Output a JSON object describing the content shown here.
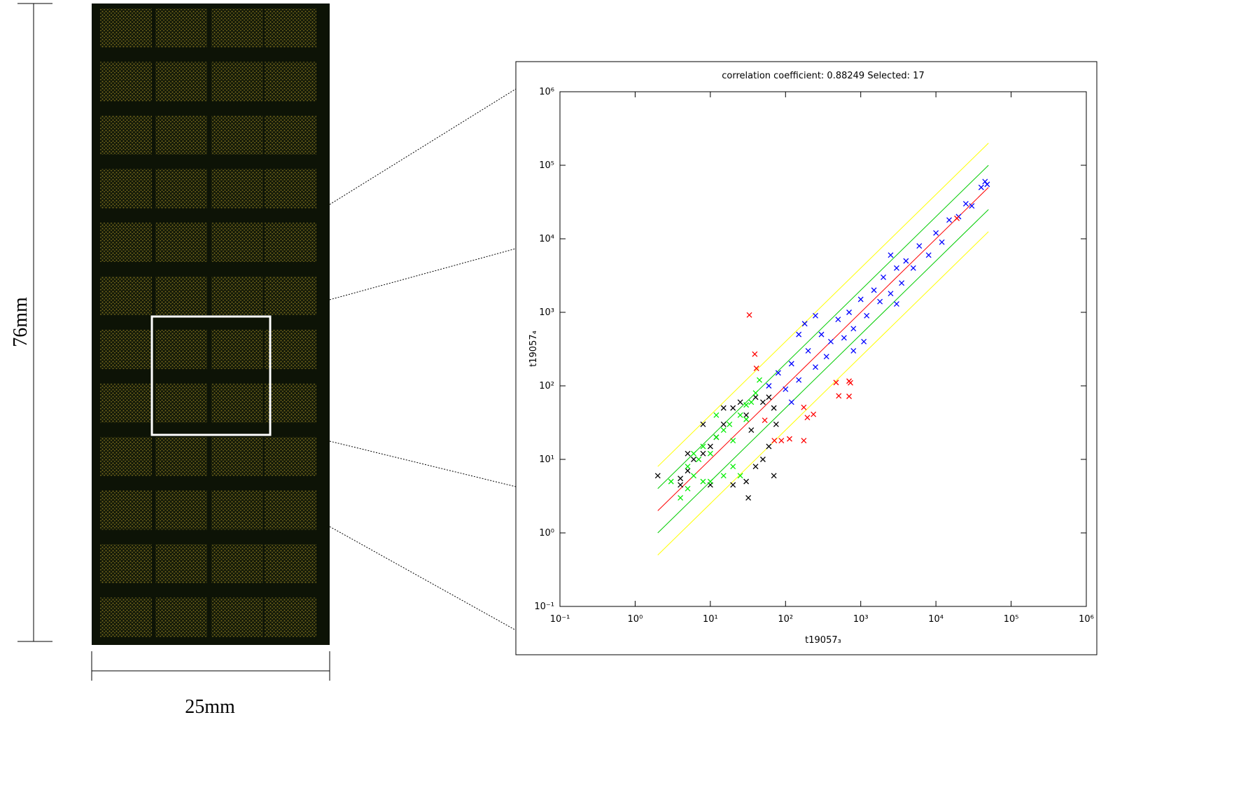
{
  "slide": {
    "height_label": "76mm",
    "width_label": "25mm"
  },
  "chart_data": {
    "type": "scatter",
    "title": "correlation coefficient: 0.88249 Selected: 17",
    "x_label": "t19057₃",
    "y_label": "t19057₄",
    "log_x": true,
    "log_y": true,
    "xlim": [
      0.1,
      1000000
    ],
    "ylim": [
      0.1,
      1000000
    ],
    "xticks": [
      {
        "value": 0.1,
        "label": "10⁻¹"
      },
      {
        "value": 1,
        "label": "10⁰"
      },
      {
        "value": 10,
        "label": "10¹"
      },
      {
        "value": 100,
        "label": "10²"
      },
      {
        "value": 1000,
        "label": "10³"
      },
      {
        "value": 10000,
        "label": "10⁴"
      },
      {
        "value": 100000,
        "label": "10⁵"
      },
      {
        "value": 1000000,
        "label": "10⁶"
      }
    ],
    "yticks": [
      {
        "value": 0.1,
        "label": "10⁻¹"
      },
      {
        "value": 1,
        "label": "10⁰"
      },
      {
        "value": 10,
        "label": "10¹"
      },
      {
        "value": 100,
        "label": "10²"
      },
      {
        "value": 1000,
        "label": "10³"
      },
      {
        "value": 10000,
        "label": "10⁴"
      },
      {
        "value": 100000,
        "label": "10⁵"
      },
      {
        "value": 1000000,
        "label": "10⁶"
      }
    ],
    "reference_lines": {
      "x_range": [
        2,
        50000
      ],
      "lines": [
        {
          "color": "#ffff00",
          "factor": 4
        },
        {
          "color": "#00cc00",
          "factor": 2
        },
        {
          "color": "#ff0000",
          "factor": 1
        },
        {
          "color": "#00cc00",
          "factor": 0.5
        },
        {
          "color": "#ffff00",
          "factor": 0.25
        }
      ]
    },
    "series": [
      {
        "color": "#0000ff",
        "x": [
          60,
          80,
          100,
          120,
          150,
          200,
          250,
          300,
          350,
          400,
          500,
          600,
          700,
          800,
          1000,
          1200,
          1500,
          1800,
          2000,
          2500,
          3000,
          3500,
          4000,
          5000,
          6000,
          8000,
          10000,
          12000,
          15000,
          20000,
          25000,
          30000,
          40000,
          45000,
          48000,
          180,
          250,
          2500,
          800,
          1100,
          150,
          120,
          3000
        ],
        "values": [
          100,
          150,
          90,
          200,
          120,
          300,
          180,
          500,
          250,
          400,
          800,
          450,
          1000,
          600,
          1500,
          900,
          2000,
          1400,
          3000,
          1800,
          4000,
          2500,
          5000,
          4000,
          8000,
          6000,
          12000,
          9000,
          18000,
          20000,
          30000,
          28000,
          50000,
          60000,
          55000,
          700,
          900,
          6000,
          300,
          400,
          500,
          60,
          1300
        ]
      },
      {
        "color": "#000000",
        "x": [
          2,
          4,
          4,
          5,
          6,
          8,
          10,
          12,
          15,
          20,
          25,
          30,
          35,
          40,
          50,
          60,
          70,
          75,
          60,
          50,
          40,
          30,
          32,
          20,
          10,
          70,
          5,
          8,
          15
        ],
        "values": [
          6,
          4.5,
          5.5,
          7,
          10,
          12,
          15,
          20,
          30,
          50,
          60,
          40,
          25,
          70,
          60,
          70,
          50,
          30,
          15,
          10,
          8,
          5,
          3,
          4.5,
          4.5,
          6,
          12,
          30,
          50
        ]
      },
      {
        "color": "#00ee00",
        "x": [
          4,
          5,
          6,
          7,
          8,
          10,
          12,
          15,
          18,
          20,
          25,
          30,
          35,
          40,
          45,
          5,
          6,
          10,
          20,
          25,
          15,
          8,
          3,
          12,
          30
        ],
        "values": [
          3,
          4,
          6,
          10,
          15,
          12,
          20,
          25,
          30,
          18,
          40,
          55,
          60,
          80,
          120,
          8,
          12,
          5,
          8,
          6,
          6,
          5,
          5,
          40,
          35
        ]
      },
      {
        "color": "#ff0000",
        "x": [
          33,
          39,
          41,
          53,
          195,
          235,
          175,
          470,
          730,
          700,
          700,
          510,
          113,
          175,
          71,
          88,
          19000
        ],
        "values": [
          920,
          270,
          173,
          34,
          37,
          41,
          51,
          111,
          110,
          72,
          116,
          73,
          19,
          18,
          18,
          18,
          19000
        ]
      }
    ]
  }
}
